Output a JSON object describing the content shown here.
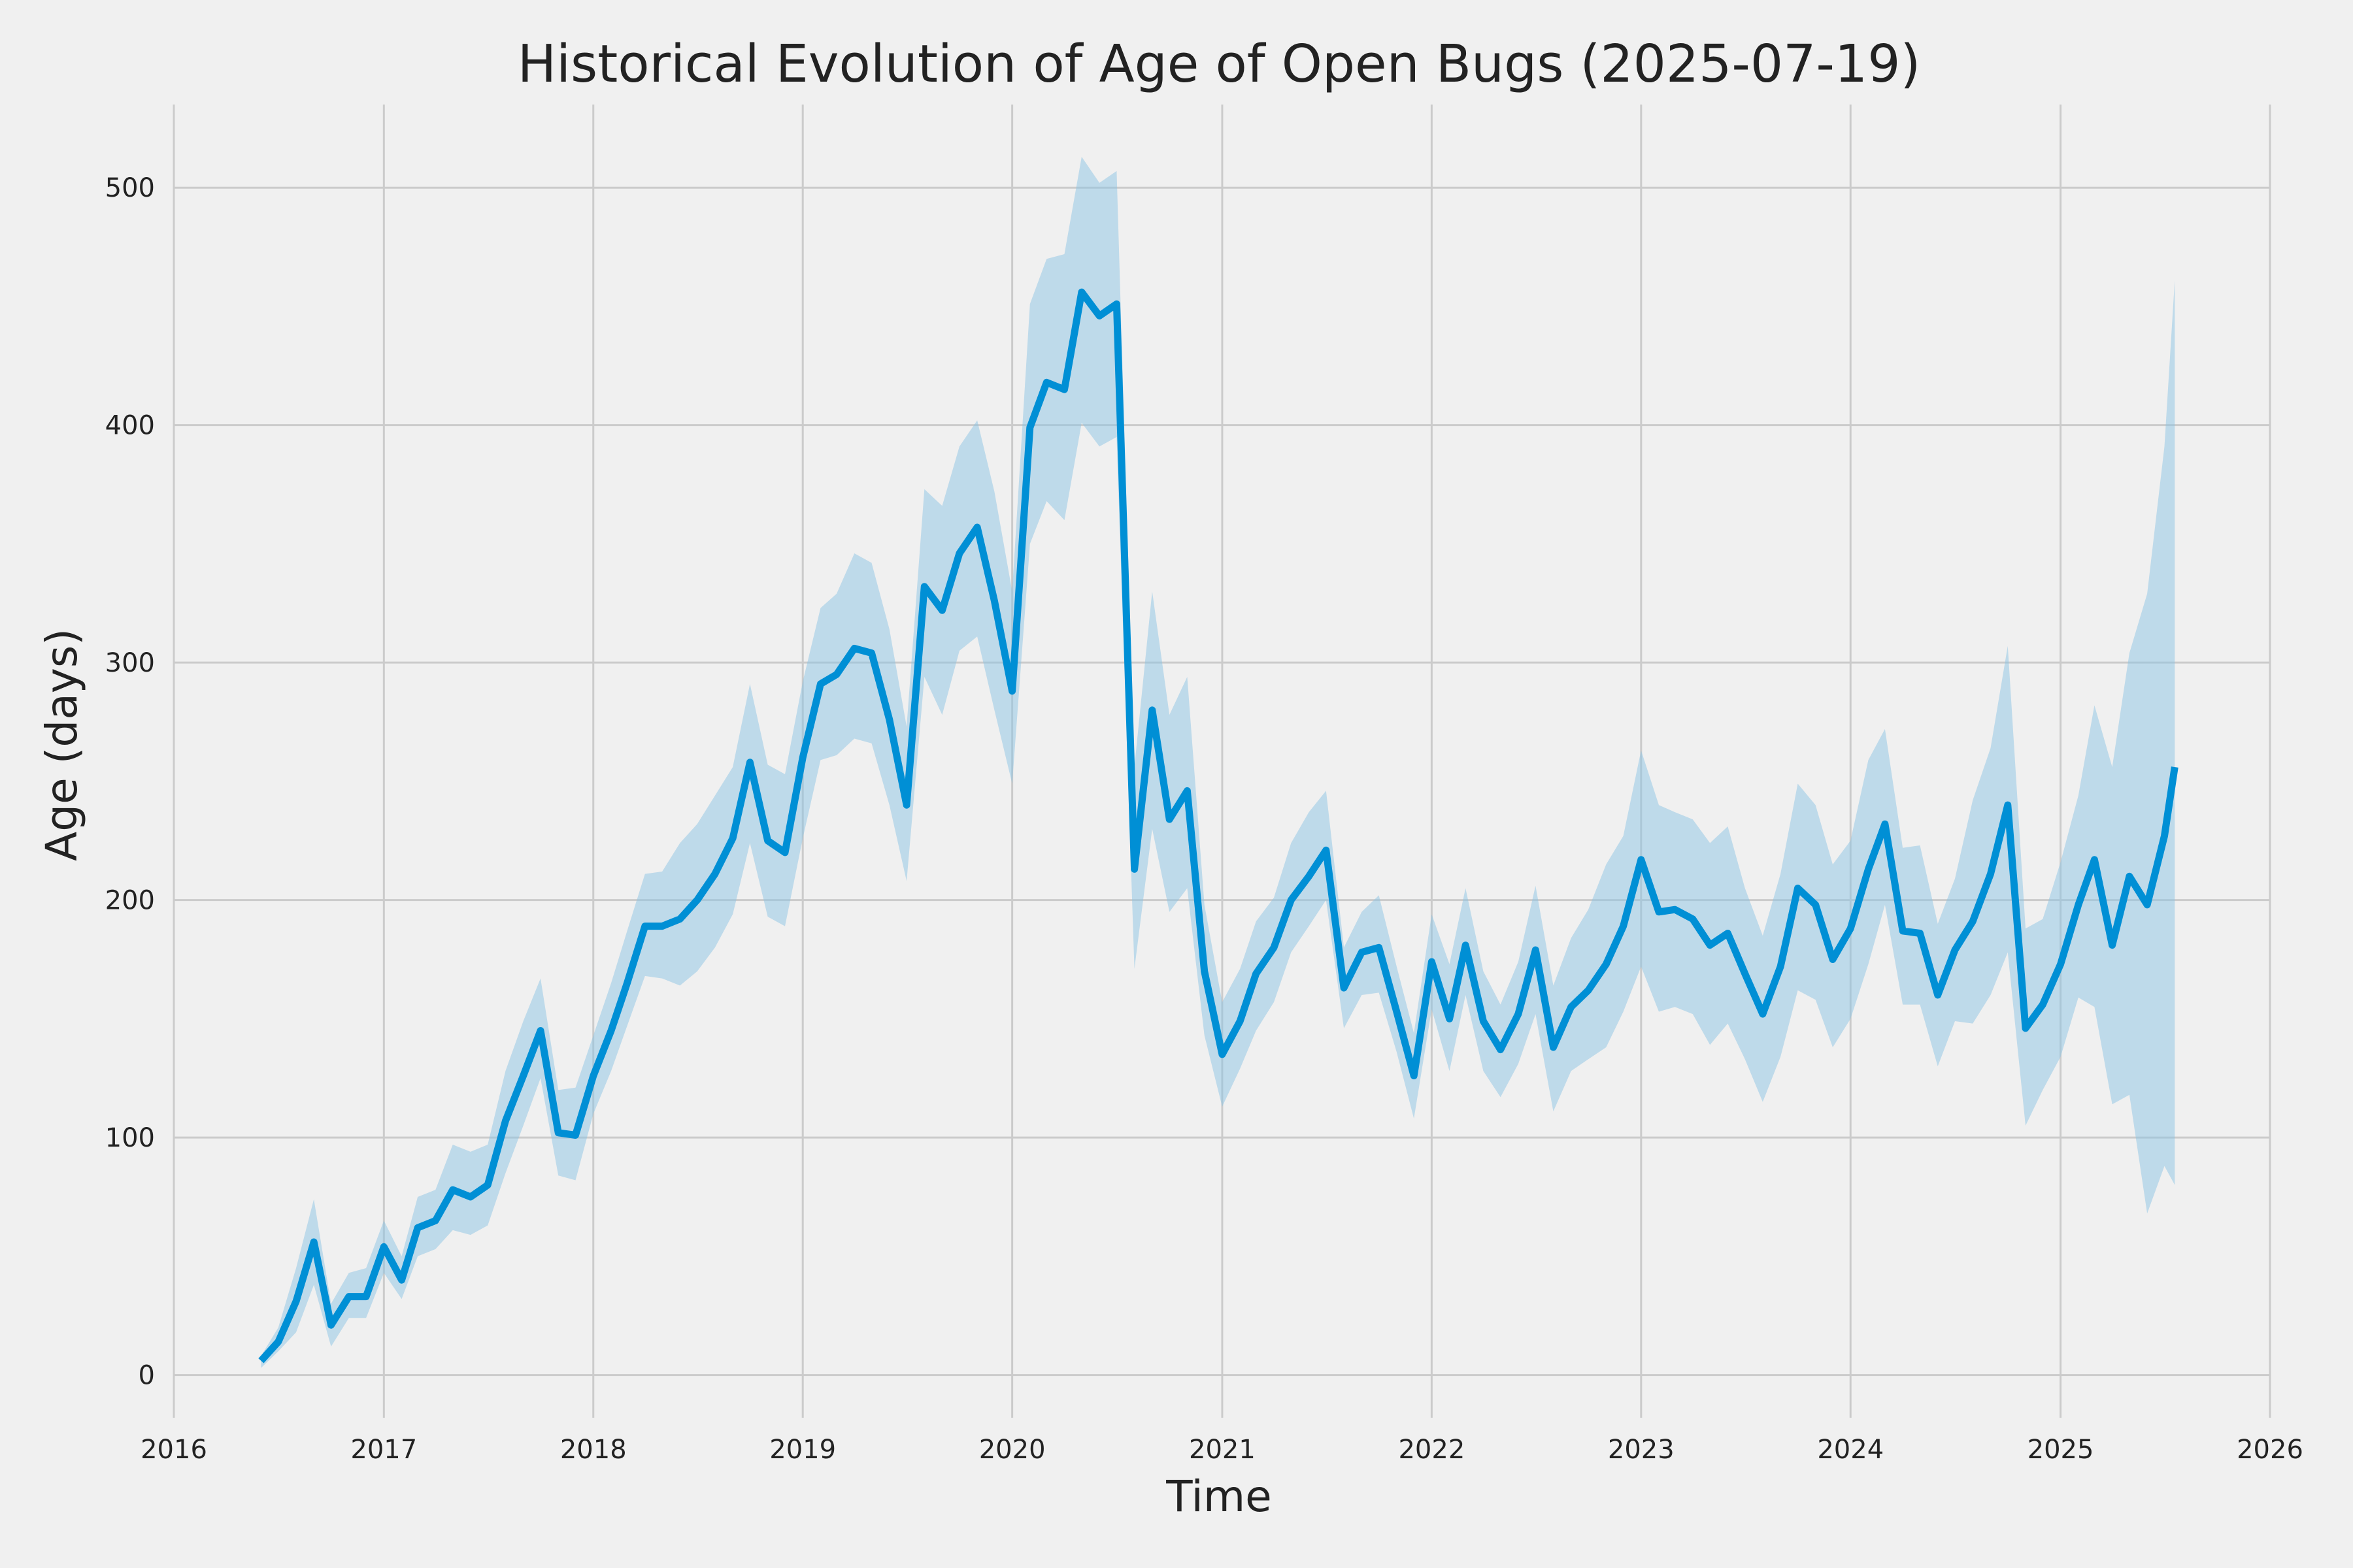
{
  "chart_data": {
    "type": "line",
    "title": "Historical Evolution of Age of Open Bugs (2025-07-19)",
    "xlabel": "Time",
    "ylabel": "Age (days)",
    "xlim": [
      "2016-01-01",
      "2026-01-01"
    ],
    "ylim": [
      -18,
      535
    ],
    "xticks": [
      "2016",
      "2017",
      "2018",
      "2019",
      "2020",
      "2021",
      "2022",
      "2023",
      "2024",
      "2025",
      "2026"
    ],
    "yticks": [
      "0",
      "100",
      "200",
      "300",
      "400",
      "500"
    ],
    "grid": true,
    "colors": {
      "line": "#008fd5",
      "band": "#8cc3e3",
      "background": "#f0f0f0",
      "grid": "#cbcbcb",
      "text": "#222222"
    },
    "series": [
      {
        "x": [
          "2016-06-01",
          "2016-07-01",
          "2016-08-01",
          "2016-09-01",
          "2016-10-01",
          "2016-11-01",
          "2016-12-01",
          "2017-01-01",
          "2017-02-01",
          "2017-03-01",
          "2017-04-01",
          "2017-05-01",
          "2017-06-01",
          "2017-07-01",
          "2017-08-01",
          "2017-09-01",
          "2017-10-01",
          "2017-11-01",
          "2017-12-01",
          "2018-01-01",
          "2018-02-01",
          "2018-03-01",
          "2018-04-01",
          "2018-05-01",
          "2018-06-01",
          "2018-07-01",
          "2018-08-01",
          "2018-09-01",
          "2018-10-01",
          "2018-11-01",
          "2018-12-01",
          "2019-01-01",
          "2019-02-01",
          "2019-03-01",
          "2019-04-01",
          "2019-05-01",
          "2019-06-01",
          "2019-07-01",
          "2019-08-01",
          "2019-09-01",
          "2019-10-01",
          "2019-11-01",
          "2019-12-01",
          "2020-01-01",
          "2020-02-01",
          "2020-03-01",
          "2020-04-01",
          "2020-05-01",
          "2020-06-01",
          "2020-07-01",
          "2020-08-01",
          "2020-09-01",
          "2020-10-01",
          "2020-11-01",
          "2020-12-01",
          "2021-01-01",
          "2021-02-01",
          "2021-03-01",
          "2021-04-01",
          "2021-05-01",
          "2021-06-01",
          "2021-07-01",
          "2021-08-01",
          "2021-09-01",
          "2021-10-01",
          "2021-11-01",
          "2021-12-01",
          "2022-01-01",
          "2022-02-01",
          "2022-03-01",
          "2022-04-01",
          "2022-05-01",
          "2022-06-01",
          "2022-07-01",
          "2022-08-01",
          "2022-09-01",
          "2022-10-01",
          "2022-11-01",
          "2022-12-01",
          "2023-01-01",
          "2023-02-01",
          "2023-03-01",
          "2023-04-01",
          "2023-05-01",
          "2023-06-01",
          "2023-07-01",
          "2023-08-01",
          "2023-09-01",
          "2023-10-01",
          "2023-11-01",
          "2023-12-01",
          "2024-01-01",
          "2024-02-01",
          "2024-03-01",
          "2024-04-01",
          "2024-05-01",
          "2024-06-01",
          "2024-07-01",
          "2024-08-01",
          "2024-09-01",
          "2024-10-01",
          "2024-11-01",
          "2024-12-01",
          "2025-01-01",
          "2025-02-01",
          "2025-03-01",
          "2025-04-01",
          "2025-05-01",
          "2025-06-01",
          "2025-07-01",
          "2025-07-19"
        ],
        "y": [
          6,
          14,
          31,
          56,
          21,
          33,
          33,
          54,
          40,
          62,
          65,
          78,
          75,
          80,
          107,
          126,
          145,
          102,
          101,
          126,
          145,
          165,
          189,
          189,
          192,
          200,
          211,
          226,
          258,
          225,
          220,
          260,
          291,
          295,
          306,
          304,
          276,
          240,
          332,
          322,
          346,
          357,
          326,
          288,
          399,
          418,
          415,
          456,
          446,
          451,
          213,
          280,
          234,
          246,
          170,
          135,
          149,
          169,
          180,
          200,
          210,
          221,
          163,
          178,
          180,
          153,
          126,
          174,
          150,
          181,
          149,
          137,
          152,
          179,
          138,
          155,
          162,
          173,
          189,
          217,
          195,
          196,
          192,
          181,
          186,
          169,
          152,
          172,
          205,
          198,
          175,
          188,
          213,
          232,
          187,
          186,
          160,
          179,
          191,
          211,
          240,
          146,
          156,
          173,
          198,
          217,
          181,
          210,
          198,
          227,
          256
        ],
        "lower": [
          3,
          10,
          18,
          38,
          12,
          24,
          24,
          43,
          32,
          50,
          53,
          61,
          59,
          63,
          85,
          105,
          125,
          84,
          82,
          110,
          128,
          147,
          168,
          167,
          164,
          170,
          180,
          194,
          224,
          193,
          189,
          226,
          259,
          261,
          268,
          266,
          240,
          208,
          294,
          278,
          305,
          311,
          280,
          249,
          350,
          368,
          360,
          401,
          391,
          395,
          171,
          230,
          195,
          205,
          143,
          113,
          129,
          145,
          157,
          178,
          189,
          200,
          146,
          160,
          161,
          136,
          108,
          154,
          128,
          160,
          128,
          117,
          131,
          152,
          111,
          128,
          133,
          138,
          153,
          172,
          153,
          155,
          152,
          139,
          148,
          133,
          115,
          134,
          162,
          158,
          138,
          150,
          173,
          198,
          156,
          156,
          130,
          149,
          148,
          160,
          178,
          105,
          120,
          134,
          159,
          155,
          114,
          118,
          68,
          88,
          80
        ],
        "upper": [
          8,
          20,
          45,
          74,
          30,
          43,
          45,
          65,
          50,
          75,
          78,
          97,
          94,
          97,
          128,
          149,
          167,
          120,
          121,
          143,
          165,
          187,
          211,
          212,
          224,
          232,
          244,
          256,
          291,
          257,
          253,
          292,
          323,
          329,
          346,
          342,
          314,
          273,
          373,
          366,
          391,
          402,
          372,
          330,
          451,
          470,
          472,
          513,
          502,
          507,
          256,
          330,
          278,
          294,
          198,
          157,
          171,
          191,
          201,
          224,
          237,
          246,
          180,
          195,
          202,
          172,
          144,
          194,
          173,
          205,
          170,
          156,
          174,
          206,
          164,
          184,
          196,
          215,
          227,
          263,
          240,
          237,
          234,
          224,
          231,
          205,
          185,
          211,
          249,
          240,
          215,
          225,
          259,
          272,
          222,
          223,
          190,
          209,
          242,
          264,
          307,
          188,
          192,
          216,
          244,
          282,
          256,
          304,
          329,
          391,
          461
        ]
      }
    ]
  }
}
